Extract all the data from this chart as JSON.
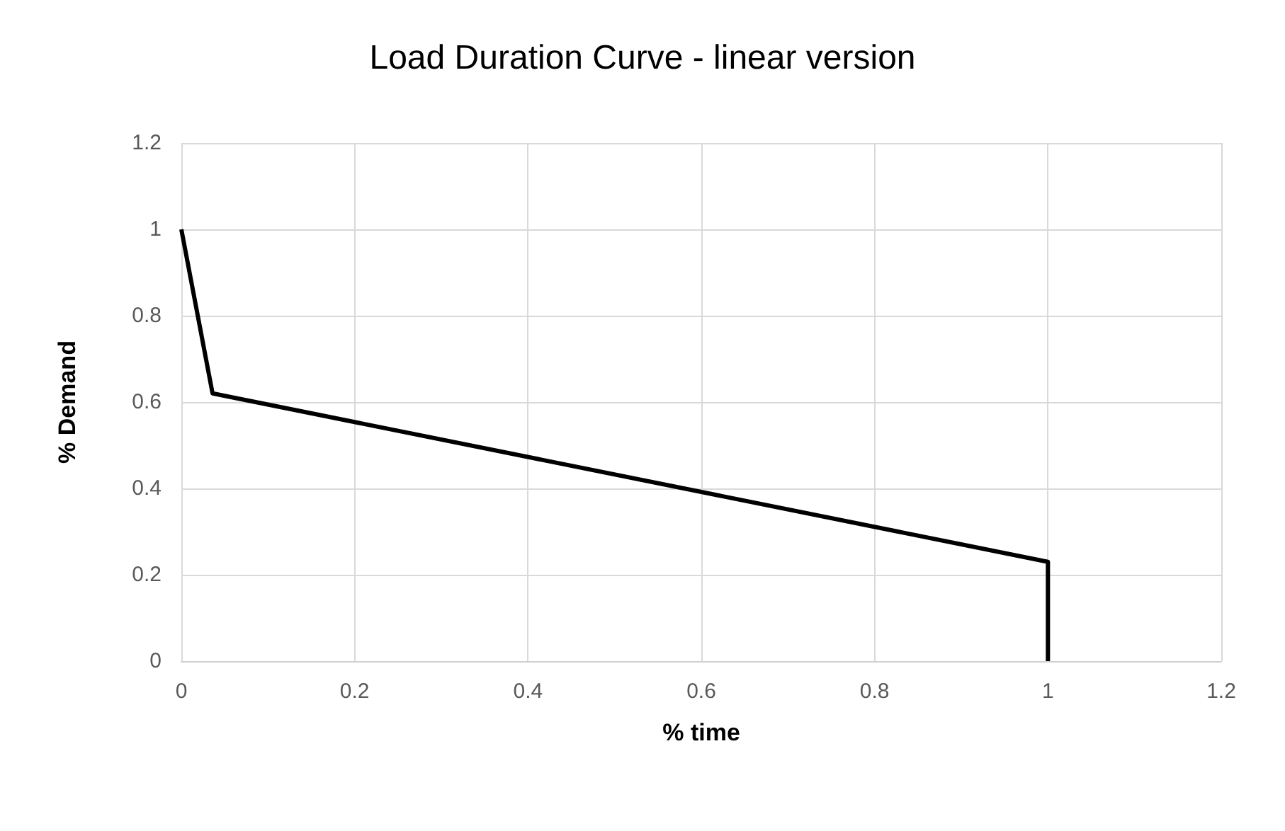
{
  "chart_data": {
    "type": "line",
    "title": "Load Duration Curve - linear version",
    "xlabel": "% time",
    "ylabel": "% Demand",
    "x": [
      0,
      0.036,
      1,
      1
    ],
    "series": [
      {
        "color": "#000000",
        "values": [
          1,
          0.62,
          0.23,
          0
        ]
      }
    ],
    "xlim": [
      0,
      1.2
    ],
    "xticks": [
      0,
      0.2,
      0.4,
      0.6,
      0.8,
      1,
      1.2
    ],
    "ylim": [
      0,
      1.2
    ],
    "yticks": [
      0,
      0.2,
      0.4,
      0.6,
      0.8,
      1,
      1.2
    ],
    "grid": true,
    "marker": "none",
    "line_style": "solid"
  }
}
